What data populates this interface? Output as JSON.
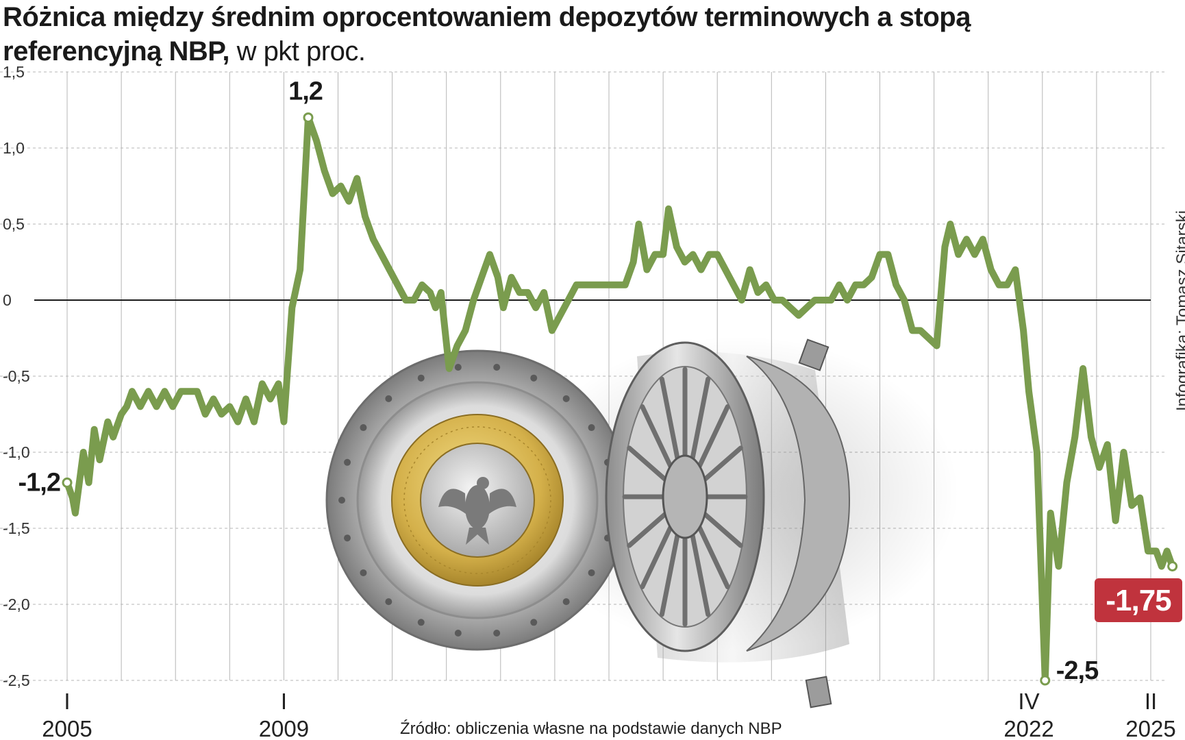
{
  "title": {
    "bold": "Różnica między średnim oprocentowaniem depozytów terminowych a stopą referencyjną NBP,",
    "light": "w pkt proc."
  },
  "credit": "Infografika: Tomasz Sitarski",
  "source": "Źródło: obliczenia własne na podstawie danych NBP",
  "colors": {
    "line": "#7a9c4e",
    "badge": "#c0333d",
    "grid": "#b5b5b5",
    "zero": "#1a1a1a"
  },
  "illustration": "coin-in-vault-door",
  "chart_data": {
    "type": "line",
    "title": "Różnica między średnim oprocentowaniem depozytów terminowych a stopą referencyjną NBP, w pkt proc.",
    "ylim": [
      -2.5,
      1.5
    ],
    "yticks": [
      1.5,
      1.0,
      0.5,
      0,
      -0.5,
      -1.0,
      -1.5,
      -2.0,
      -2.5
    ],
    "ytick_labels": [
      "1,5",
      "1,0",
      "0,5",
      "0",
      "-0,5",
      "-1,0",
      "-1,5",
      "-2,0",
      "-2,5"
    ],
    "xlim": [
      2005.0,
      2025.0
    ],
    "x_labeled_ticks": [
      {
        "x": 2005.0,
        "quarter": "I",
        "year": "2005"
      },
      {
        "x": 2009.0,
        "quarter": "I",
        "year": "2009"
      },
      {
        "x": 2022.75,
        "quarter": "IV",
        "year": "2022"
      },
      {
        "x": 2025.0,
        "quarter": "II",
        "year": "2025"
      }
    ],
    "grid": true,
    "series": [
      {
        "points": [
          [
            2005.0,
            -1.2
          ],
          [
            2005.1,
            -1.3
          ],
          [
            2005.15,
            -1.4
          ],
          [
            2005.3,
            -1.0
          ],
          [
            2005.4,
            -1.2
          ],
          [
            2005.5,
            -0.85
          ],
          [
            2005.6,
            -1.05
          ],
          [
            2005.75,
            -0.8
          ],
          [
            2005.85,
            -0.9
          ],
          [
            2006.0,
            -0.75
          ],
          [
            2006.1,
            -0.7
          ],
          [
            2006.2,
            -0.6
          ],
          [
            2006.35,
            -0.7
          ],
          [
            2006.5,
            -0.6
          ],
          [
            2006.65,
            -0.7
          ],
          [
            2006.8,
            -0.6
          ],
          [
            2006.95,
            -0.7
          ],
          [
            2007.1,
            -0.6
          ],
          [
            2007.25,
            -0.6
          ],
          [
            2007.4,
            -0.6
          ],
          [
            2007.55,
            -0.75
          ],
          [
            2007.7,
            -0.65
          ],
          [
            2007.85,
            -0.75
          ],
          [
            2008.0,
            -0.7
          ],
          [
            2008.15,
            -0.8
          ],
          [
            2008.3,
            -0.65
          ],
          [
            2008.45,
            -0.8
          ],
          [
            2008.6,
            -0.55
          ],
          [
            2008.75,
            -0.65
          ],
          [
            2008.9,
            -0.55
          ],
          [
            2009.0,
            -0.8
          ],
          [
            2009.15,
            -0.05
          ],
          [
            2009.3,
            0.2
          ],
          [
            2009.45,
            1.2
          ],
          [
            2009.6,
            1.05
          ],
          [
            2009.75,
            0.85
          ],
          [
            2009.9,
            0.7
          ],
          [
            2010.05,
            0.75
          ],
          [
            2010.2,
            0.65
          ],
          [
            2010.35,
            0.8
          ],
          [
            2010.5,
            0.55
          ],
          [
            2010.65,
            0.4
          ],
          [
            2010.8,
            0.3
          ],
          [
            2010.95,
            0.2
          ],
          [
            2011.1,
            0.1
          ],
          [
            2011.25,
            0.0
          ],
          [
            2011.4,
            0.0
          ],
          [
            2011.55,
            0.1
          ],
          [
            2011.7,
            0.05
          ],
          [
            2011.8,
            -0.05
          ],
          [
            2011.9,
            0.05
          ],
          [
            2012.05,
            -0.45
          ],
          [
            2012.2,
            -0.3
          ],
          [
            2012.35,
            -0.2
          ],
          [
            2012.5,
            0.0
          ],
          [
            2012.65,
            0.15
          ],
          [
            2012.8,
            0.3
          ],
          [
            2012.95,
            0.15
          ],
          [
            2013.05,
            -0.05
          ],
          [
            2013.2,
            0.15
          ],
          [
            2013.35,
            0.05
          ],
          [
            2013.5,
            0.05
          ],
          [
            2013.65,
            -0.05
          ],
          [
            2013.8,
            0.05
          ],
          [
            2013.95,
            -0.2
          ],
          [
            2014.1,
            -0.1
          ],
          [
            2014.25,
            0.0
          ],
          [
            2014.4,
            0.1
          ],
          [
            2014.55,
            0.1
          ],
          [
            2014.7,
            0.1
          ],
          [
            2014.85,
            0.1
          ],
          [
            2015.0,
            0.1
          ],
          [
            2015.15,
            0.1
          ],
          [
            2015.3,
            0.1
          ],
          [
            2015.45,
            0.25
          ],
          [
            2015.55,
            0.5
          ],
          [
            2015.7,
            0.2
          ],
          [
            2015.85,
            0.3
          ],
          [
            2016.0,
            0.3
          ],
          [
            2016.1,
            0.6
          ],
          [
            2016.25,
            0.35
          ],
          [
            2016.4,
            0.25
          ],
          [
            2016.55,
            0.3
          ],
          [
            2016.7,
            0.2
          ],
          [
            2016.85,
            0.3
          ],
          [
            2017.0,
            0.3
          ],
          [
            2017.15,
            0.2
          ],
          [
            2017.3,
            0.1
          ],
          [
            2017.45,
            0.0
          ],
          [
            2017.6,
            0.2
          ],
          [
            2017.75,
            0.05
          ],
          [
            2017.9,
            0.1
          ],
          [
            2018.05,
            0.0
          ],
          [
            2018.2,
            0.0
          ],
          [
            2018.35,
            -0.05
          ],
          [
            2018.5,
            -0.1
          ],
          [
            2018.65,
            -0.05
          ],
          [
            2018.8,
            0.0
          ],
          [
            2018.95,
            0.0
          ],
          [
            2019.1,
            0.0
          ],
          [
            2019.25,
            0.1
          ],
          [
            2019.4,
            0.0
          ],
          [
            2019.55,
            0.1
          ],
          [
            2019.7,
            0.1
          ],
          [
            2019.85,
            0.15
          ],
          [
            2020.0,
            0.3
          ],
          [
            2020.15,
            0.3
          ],
          [
            2020.3,
            0.1
          ],
          [
            2020.45,
            0.0
          ],
          [
            2020.6,
            -0.2
          ],
          [
            2020.75,
            -0.2
          ],
          [
            2020.9,
            -0.25
          ],
          [
            2021.05,
            -0.3
          ],
          [
            2021.2,
            0.35
          ],
          [
            2021.3,
            0.5
          ],
          [
            2021.45,
            0.3
          ],
          [
            2021.6,
            0.4
          ],
          [
            2021.75,
            0.3
          ],
          [
            2021.9,
            0.4
          ],
          [
            2022.05,
            0.2
          ],
          [
            2022.2,
            0.1
          ],
          [
            2022.35,
            0.1
          ],
          [
            2022.5,
            0.2
          ],
          [
            2022.65,
            -0.2
          ],
          [
            2022.75,
            -0.6
          ],
          [
            2022.9,
            -1.0
          ],
          [
            2023.05,
            -2.5
          ],
          [
            2023.15,
            -1.4
          ],
          [
            2023.3,
            -1.75
          ],
          [
            2023.45,
            -1.2
          ],
          [
            2023.6,
            -0.9
          ],
          [
            2023.75,
            -0.45
          ],
          [
            2023.9,
            -0.9
          ],
          [
            2024.05,
            -1.1
          ],
          [
            2024.2,
            -0.95
          ],
          [
            2024.35,
            -1.45
          ],
          [
            2024.5,
            -1.0
          ],
          [
            2024.65,
            -1.35
          ],
          [
            2024.8,
            -1.3
          ],
          [
            2024.95,
            -1.65
          ],
          [
            2025.1,
            -1.65
          ],
          [
            2025.2,
            -1.75
          ],
          [
            2025.3,
            -1.65
          ],
          [
            2025.4,
            -1.75
          ]
        ]
      }
    ],
    "annotations": [
      {
        "x": 2005.0,
        "y": -1.2,
        "text": "-1,2"
      },
      {
        "x": 2009.45,
        "y": 1.2,
        "text": "1,2"
      },
      {
        "x": 2023.05,
        "y": -2.5,
        "text": "-2,5"
      },
      {
        "x": 2025.4,
        "y": -1.75,
        "text": "-1,75",
        "badge": true
      }
    ]
  }
}
